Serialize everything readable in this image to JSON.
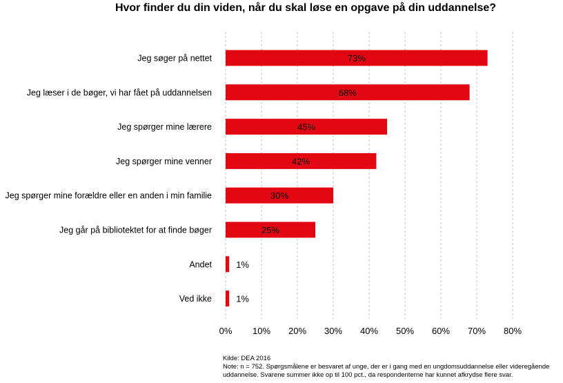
{
  "chart_data": {
    "type": "bar",
    "orientation": "horizontal",
    "title": "Hvor finder du din viden, når du skal løse en opgave på din uddannelse?",
    "categories": [
      "Jeg søger på nettet",
      "Jeg læser i de bøger, vi har fået på uddannelsen",
      "Jeg spørger mine lærere",
      "Jeg spørger mine venner",
      "Jeg spørger mine forældre eller en anden i min familie",
      "Jeg går på bibliotektet for at finde bøger",
      "Andet",
      "Ved ikke"
    ],
    "values": [
      73,
      68,
      45,
      42,
      30,
      25,
      1,
      1
    ],
    "value_labels": [
      "73%",
      "68%",
      "45%",
      "42%",
      "30%",
      "25%",
      "1%",
      "1%"
    ],
    "xlim": [
      0,
      80
    ],
    "x_ticks": [
      0,
      10,
      20,
      30,
      40,
      50,
      60,
      70,
      80
    ],
    "x_tick_labels": [
      "0%",
      "10%",
      "20%",
      "30%",
      "40%",
      "50%",
      "60%",
      "70%",
      "80%"
    ],
    "grid": "vertical-dashed",
    "bar_color": "#e30613",
    "grid_color": "#b0b0b0"
  },
  "footer": {
    "source": "Kilde: DEA 2016",
    "note": "Note: n = 752. Spørgsmålene er besvaret af unge, der er i gang med en ungdomsuddannelse eller videregående uddannelse. Svarene summer ikke op til 100 pct., da respondenterne har kunnet afkrydse flere svar."
  }
}
